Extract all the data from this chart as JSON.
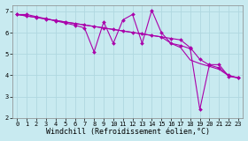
{
  "xlabel": "Windchill (Refroidissement éolien,°C)",
  "ylabel": "",
  "bg_color": "#c8eaf0",
  "grid_color": "#b0d8e0",
  "line_color": "#aa00aa",
  "xlim": [
    -0.5,
    23.5
  ],
  "ylim": [
    2.0,
    7.3
  ],
  "yticks": [
    2,
    3,
    4,
    5,
    6,
    7
  ],
  "xticks": [
    0,
    1,
    2,
    3,
    4,
    5,
    6,
    7,
    8,
    9,
    10,
    11,
    12,
    13,
    14,
    15,
    16,
    17,
    18,
    19,
    20,
    21,
    22,
    23
  ],
  "line1_x": [
    0,
    1,
    2,
    3,
    4,
    5,
    6,
    7,
    8,
    9,
    10,
    11,
    12,
    13,
    14,
    15,
    16,
    17,
    18,
    19,
    20,
    21,
    22,
    23
  ],
  "line1_y": [
    6.85,
    6.78,
    6.71,
    6.64,
    6.57,
    6.5,
    6.43,
    6.36,
    6.29,
    6.22,
    6.15,
    6.08,
    6.01,
    5.94,
    5.87,
    5.8,
    5.5,
    5.3,
    4.72,
    4.55,
    4.42,
    4.28,
    3.98,
    3.88
  ],
  "line2_x": [
    0,
    1,
    2,
    3,
    4,
    5,
    6,
    7,
    8,
    9,
    10,
    11,
    12,
    13,
    14,
    15,
    16,
    17,
    18,
    19,
    20,
    21,
    22,
    23
  ],
  "line2_y": [
    6.85,
    6.78,
    6.71,
    6.64,
    6.57,
    6.5,
    6.43,
    6.36,
    6.29,
    6.22,
    6.15,
    6.08,
    6.01,
    5.94,
    5.87,
    5.8,
    5.73,
    5.66,
    5.3,
    4.75,
    4.48,
    4.35,
    4.0,
    3.88
  ],
  "line3_x": [
    0,
    1,
    2,
    3,
    4,
    5,
    6,
    7,
    8,
    9,
    10,
    11,
    12,
    13,
    14,
    15,
    16,
    17,
    18,
    19,
    20,
    21,
    22,
    23
  ],
  "line3_y": [
    6.85,
    6.85,
    6.75,
    6.65,
    6.55,
    6.45,
    6.35,
    6.22,
    5.1,
    6.5,
    5.5,
    6.6,
    6.85,
    5.5,
    7.05,
    6.0,
    5.5,
    5.4,
    5.25,
    2.4,
    4.5,
    4.5,
    3.95,
    3.88
  ],
  "marker": "D",
  "markersize": 2.0,
  "linewidth": 0.8,
  "tick_fontsize": 5.0,
  "label_fontsize": 6.0
}
